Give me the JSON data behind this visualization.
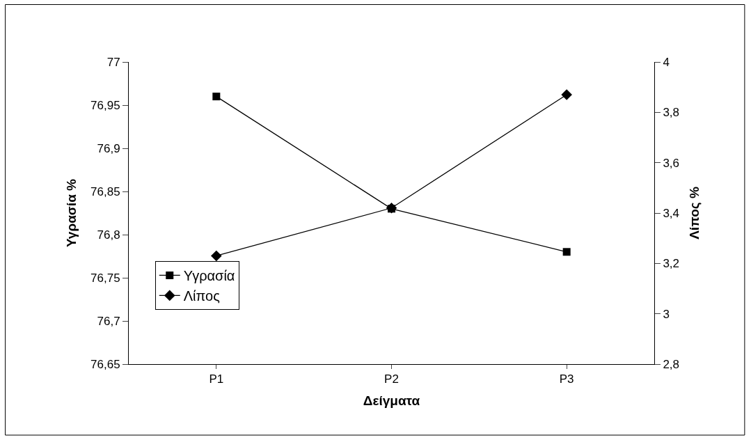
{
  "chart_data": {
    "type": "line",
    "xlabel": "Δείγματα",
    "ylabel": "Υγρασία %",
    "y2label": "Λίπος %",
    "categories": [
      "P1",
      "P2",
      "P3"
    ],
    "series": [
      {
        "name": "Υγρασία",
        "color": "#000000",
        "marker": "square",
        "values": [
          76.96,
          76.83,
          76.78
        ]
      },
      {
        "name": "Λίπος",
        "color": "#000000",
        "marker": "diamond",
        "axis": "y2",
        "values": [
          3.23,
          3.42,
          3.87
        ]
      }
    ],
    "ylim": [
      76.65,
      77
    ],
    "yticks": [
      {
        "value": 76.65,
        "label": "76,65"
      },
      {
        "value": 76.7,
        "label": "76,7"
      },
      {
        "value": 76.75,
        "label": "76,75"
      },
      {
        "value": 76.8,
        "label": "76,8"
      },
      {
        "value": 76.85,
        "label": "76,85"
      },
      {
        "value": 76.9,
        "label": "76,9"
      },
      {
        "value": 76.95,
        "label": "76,95"
      },
      77
    ],
    "y2lim": [
      2.8,
      4
    ],
    "y2ticks": [
      {
        "value": 2.8,
        "label": "2,8"
      },
      3,
      {
        "value": 3.2,
        "label": "3,2"
      },
      {
        "value": 3.4,
        "label": "3,4"
      },
      {
        "value": 3.6,
        "label": "3,6"
      },
      {
        "value": 3.8,
        "label": "3,8"
      },
      4
    ],
    "legend": "bottom left",
    "line_style": "solid"
  }
}
